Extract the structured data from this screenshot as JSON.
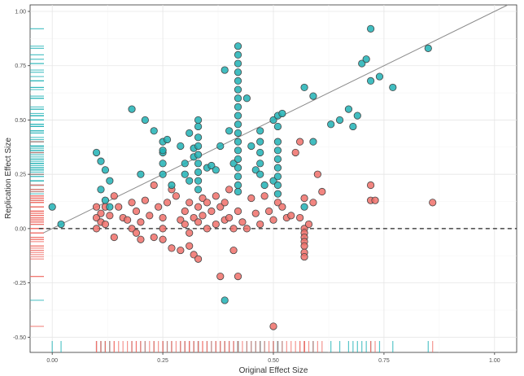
{
  "chart_data": {
    "type": "scatter",
    "xlabel": "Original Effect Size",
    "ylabel": "Replication Effect Size",
    "xlim": [
      -0.05,
      1.05
    ],
    "ylim": [
      -0.57,
      1.03
    ],
    "x_ticks": [
      0.0,
      0.25,
      0.5,
      0.75,
      1.0
    ],
    "x_tick_labels": [
      "0.00",
      "0.25",
      "0.50",
      "0.75",
      "1.00"
    ],
    "y_ticks": [
      -0.5,
      -0.25,
      0.0,
      0.25,
      0.5,
      0.75,
      1.0
    ],
    "y_tick_labels": [
      "-0.50",
      "-0.25",
      "0.00",
      "0.25",
      "0.50",
      "0.75",
      "1.00"
    ],
    "grid": true,
    "legend": "none",
    "reference_line": {
      "style": "solid",
      "color": "#8c8c8c",
      "slope": 1,
      "intercept": 0
    },
    "zero_line": {
      "style": "dashed",
      "color": "#222222",
      "y": 0
    },
    "rug": {
      "left": true,
      "bottom": true
    },
    "colors": {
      "teal": "#20b2b5",
      "red": "#f0706a",
      "outline": "#444444"
    },
    "series": [
      {
        "color": "#20b2b5",
        "points": [
          [
            0.0,
            0.1
          ],
          [
            0.02,
            0.02
          ],
          [
            0.1,
            0.35
          ],
          [
            0.11,
            0.31
          ],
          [
            0.12,
            0.27
          ],
          [
            0.12,
            0.13
          ],
          [
            0.11,
            0.18
          ],
          [
            0.13,
            0.1
          ],
          [
            0.18,
            0.55
          ],
          [
            0.2,
            0.25
          ],
          [
            0.21,
            0.5
          ],
          [
            0.23,
            0.45
          ],
          [
            0.25,
            0.35
          ],
          [
            0.25,
            0.3
          ],
          [
            0.25,
            0.25
          ],
          [
            0.25,
            0.4
          ],
          [
            0.26,
            0.41
          ],
          [
            0.29,
            0.38
          ],
          [
            0.3,
            0.3
          ],
          [
            0.3,
            0.25
          ],
          [
            0.31,
            0.22
          ],
          [
            0.31,
            0.44
          ],
          [
            0.32,
            0.37
          ],
          [
            0.32,
            0.33
          ],
          [
            0.33,
            0.5
          ],
          [
            0.33,
            0.47
          ],
          [
            0.33,
            0.42
          ],
          [
            0.33,
            0.38
          ],
          [
            0.33,
            0.34
          ],
          [
            0.33,
            0.3
          ],
          [
            0.33,
            0.26
          ],
          [
            0.33,
            0.22
          ],
          [
            0.33,
            0.18
          ],
          [
            0.35,
            0.28
          ],
          [
            0.36,
            0.29
          ],
          [
            0.37,
            0.27
          ],
          [
            0.38,
            0.38
          ],
          [
            0.39,
            0.73
          ],
          [
            0.4,
            0.45
          ],
          [
            0.41,
            0.3
          ],
          [
            0.42,
            0.17
          ],
          [
            0.42,
            0.84
          ],
          [
            0.42,
            0.8
          ],
          [
            0.42,
            0.76
          ],
          [
            0.42,
            0.72
          ],
          [
            0.42,
            0.68
          ],
          [
            0.42,
            0.64
          ],
          [
            0.42,
            0.6
          ],
          [
            0.42,
            0.56
          ],
          [
            0.42,
            0.52
          ],
          [
            0.42,
            0.48
          ],
          [
            0.42,
            0.44
          ],
          [
            0.42,
            0.4
          ],
          [
            0.42,
            0.36
          ],
          [
            0.42,
            0.32
          ],
          [
            0.42,
            0.28
          ],
          [
            0.42,
            0.24
          ],
          [
            0.42,
            0.2
          ],
          [
            0.44,
            0.6
          ],
          [
            0.45,
            0.38
          ],
          [
            0.46,
            0.27
          ],
          [
            0.47,
            0.45
          ],
          [
            0.47,
            0.4
          ],
          [
            0.47,
            0.35
          ],
          [
            0.47,
            0.3
          ],
          [
            0.47,
            0.25
          ],
          [
            0.48,
            0.2
          ],
          [
            0.5,
            0.5
          ],
          [
            0.5,
            0.22
          ],
          [
            0.51,
            0.52
          ],
          [
            0.51,
            0.47
          ],
          [
            0.51,
            0.4
          ],
          [
            0.51,
            0.36
          ],
          [
            0.51,
            0.32
          ],
          [
            0.51,
            0.28
          ],
          [
            0.51,
            0.24
          ],
          [
            0.51,
            0.2
          ],
          [
            0.51,
            0.16
          ],
          [
            0.52,
            0.53
          ],
          [
            0.57,
            0.65
          ],
          [
            0.57,
            0.1
          ],
          [
            0.59,
            0.4
          ],
          [
            0.59,
            0.61
          ],
          [
            0.63,
            0.48
          ],
          [
            0.65,
            0.5
          ],
          [
            0.67,
            0.55
          ],
          [
            0.68,
            0.47
          ],
          [
            0.69,
            0.52
          ],
          [
            0.7,
            0.76
          ],
          [
            0.71,
            0.78
          ],
          [
            0.72,
            0.68
          ],
          [
            0.72,
            0.92
          ],
          [
            0.74,
            0.7
          ],
          [
            0.77,
            0.65
          ],
          [
            0.85,
            0.83
          ],
          [
            0.39,
            -0.33
          ],
          [
            0.13,
            0.22
          ],
          [
            0.27,
            0.2
          ],
          [
            0.25,
            0.36
          ]
        ]
      },
      {
        "color": "#f0706a",
        "points": [
          [
            0.1,
            0.1
          ],
          [
            0.1,
            0.05
          ],
          [
            0.1,
            0.0
          ],
          [
            0.11,
            0.07
          ],
          [
            0.11,
            0.03
          ],
          [
            0.12,
            0.1
          ],
          [
            0.12,
            0.02
          ],
          [
            0.13,
            0.06
          ],
          [
            0.14,
            0.15
          ],
          [
            0.15,
            0.1
          ],
          [
            0.16,
            0.05
          ],
          [
            0.17,
            0.04
          ],
          [
            0.18,
            0.12
          ],
          [
            0.18,
            0.0
          ],
          [
            0.19,
            -0.02
          ],
          [
            0.19,
            0.08
          ],
          [
            0.2,
            0.03
          ],
          [
            0.21,
            0.13
          ],
          [
            0.22,
            0.06
          ],
          [
            0.23,
            -0.04
          ],
          [
            0.23,
            0.2
          ],
          [
            0.24,
            0.1
          ],
          [
            0.25,
            0.05
          ],
          [
            0.25,
            0.0
          ],
          [
            0.25,
            -0.05
          ],
          [
            0.26,
            0.12
          ],
          [
            0.27,
            0.18
          ],
          [
            0.28,
            0.15
          ],
          [
            0.29,
            0.04
          ],
          [
            0.29,
            -0.1
          ],
          [
            0.3,
            0.08
          ],
          [
            0.3,
            0.02
          ],
          [
            0.31,
            0.12
          ],
          [
            0.31,
            -0.02
          ],
          [
            0.32,
            0.05
          ],
          [
            0.32,
            -0.12
          ],
          [
            0.33,
            0.1
          ],
          [
            0.33,
            0.03
          ],
          [
            0.33,
            -0.14
          ],
          [
            0.34,
            0.14
          ],
          [
            0.34,
            0.06
          ],
          [
            0.35,
            0.0
          ],
          [
            0.35,
            0.12
          ],
          [
            0.36,
            0.08
          ],
          [
            0.37,
            0.02
          ],
          [
            0.37,
            0.15
          ],
          [
            0.38,
            0.1
          ],
          [
            0.38,
            -0.22
          ],
          [
            0.39,
            0.04
          ],
          [
            0.39,
            0.12
          ],
          [
            0.4,
            0.18
          ],
          [
            0.4,
            0.05
          ],
          [
            0.41,
            0.0
          ],
          [
            0.41,
            -0.1
          ],
          [
            0.42,
            -0.22
          ],
          [
            0.42,
            0.08
          ],
          [
            0.43,
            0.03
          ],
          [
            0.44,
            0.0
          ],
          [
            0.45,
            0.14
          ],
          [
            0.46,
            0.07
          ],
          [
            0.47,
            0.02
          ],
          [
            0.48,
            0.15
          ],
          [
            0.49,
            0.08
          ],
          [
            0.5,
            0.04
          ],
          [
            0.5,
            -0.45
          ],
          [
            0.51,
            0.12
          ],
          [
            0.52,
            0.1
          ],
          [
            0.53,
            0.05
          ],
          [
            0.54,
            0.06
          ],
          [
            0.55,
            0.35
          ],
          [
            0.56,
            0.4
          ],
          [
            0.56,
            0.05
          ],
          [
            0.57,
            0.0
          ],
          [
            0.57,
            -0.02
          ],
          [
            0.57,
            -0.04
          ],
          [
            0.57,
            -0.06
          ],
          [
            0.57,
            -0.08
          ],
          [
            0.57,
            -0.11
          ],
          [
            0.57,
            -0.13
          ],
          [
            0.57,
            0.14
          ],
          [
            0.58,
            0.02
          ],
          [
            0.59,
            0.12
          ],
          [
            0.6,
            0.25
          ],
          [
            0.61,
            0.17
          ],
          [
            0.72,
            0.2
          ],
          [
            0.72,
            0.13
          ],
          [
            0.73,
            0.13
          ],
          [
            0.86,
            0.12
          ],
          [
            0.14,
            -0.04
          ],
          [
            0.2,
            -0.05
          ],
          [
            0.27,
            -0.09
          ],
          [
            0.31,
            -0.08
          ]
        ]
      }
    ]
  }
}
